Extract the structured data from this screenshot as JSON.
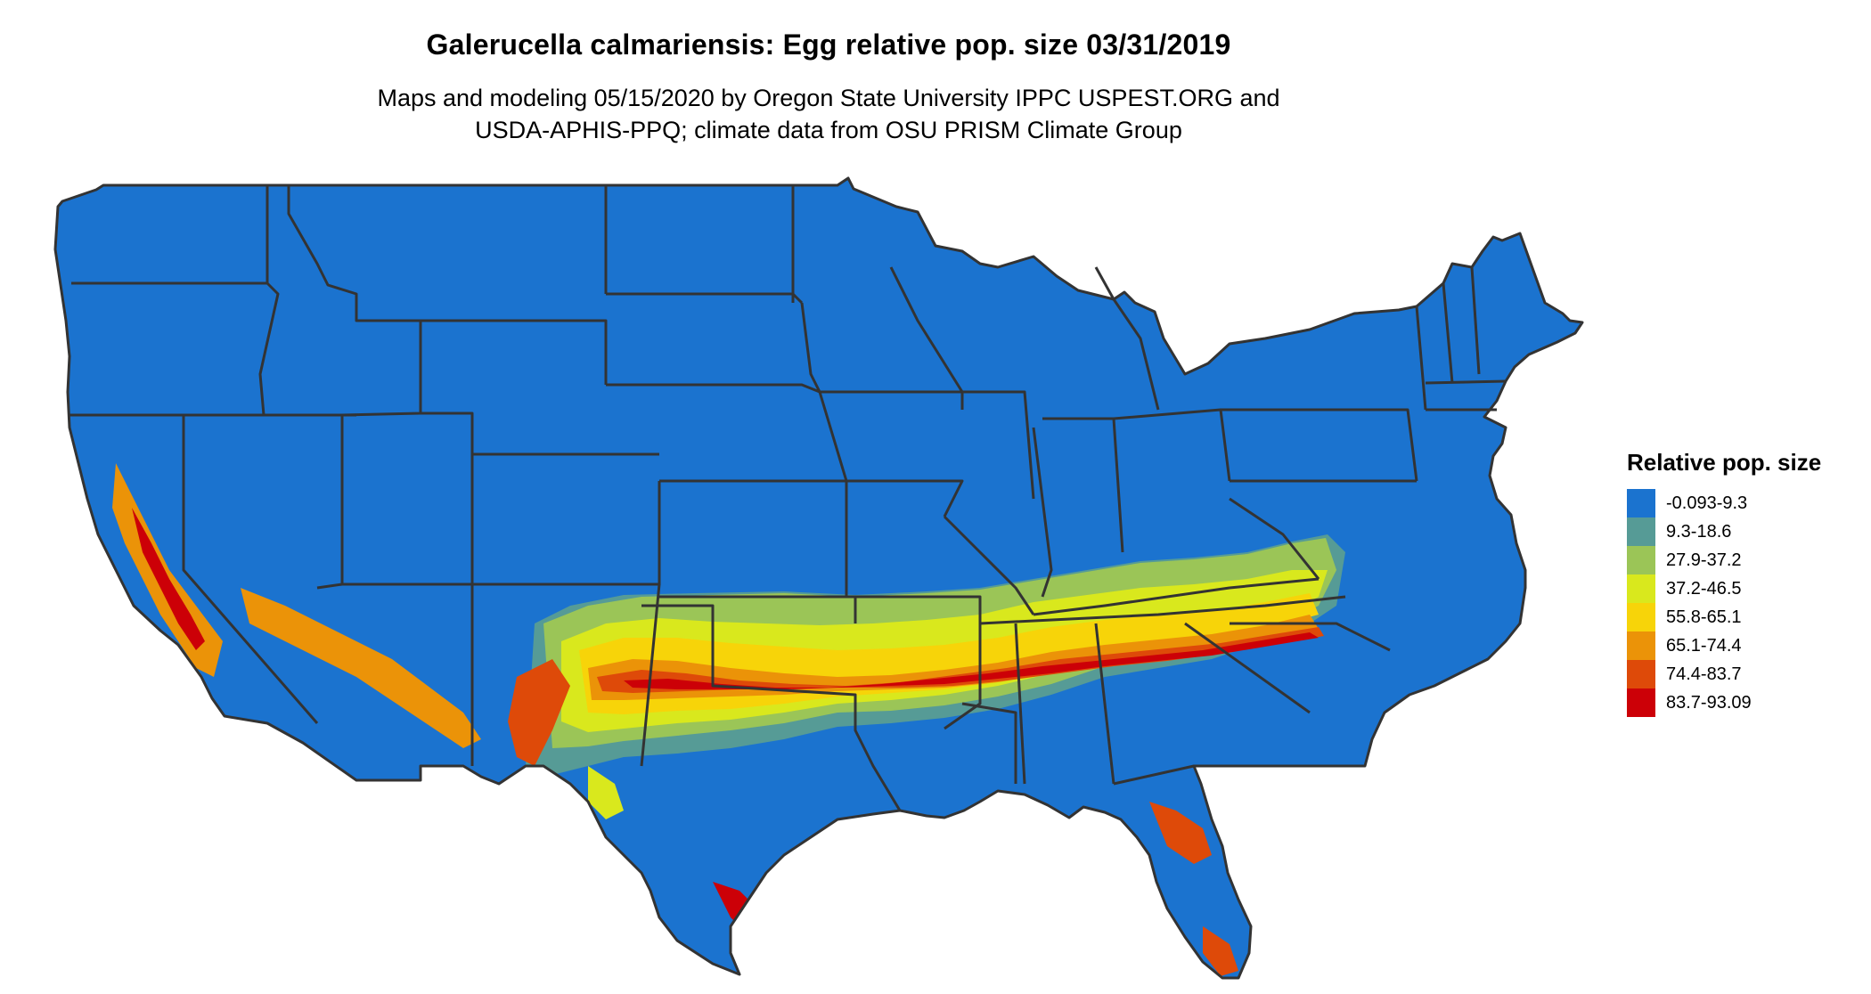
{
  "title": "Galerucella calmariensis: Egg relative pop. size 03/31/2019",
  "subtitle": {
    "line1": "Maps and modeling 05/15/2020 by Oregon State University IPPC USPEST.ORG and",
    "line2": "USDA-APHIS-PPQ; climate data from OSU PRISM Climate Group"
  },
  "legend": {
    "title": "Relative pop. size",
    "items": [
      {
        "label": "-0.093-9.3",
        "color": "#1b73cf"
      },
      {
        "label": "9.3-18.6",
        "color": "#569b96"
      },
      {
        "label": "27.9-37.2",
        "color": "#9bc557"
      },
      {
        "label": "37.2-46.5",
        "color": "#d9e81d"
      },
      {
        "label": "55.8-65.1",
        "color": "#f7d409"
      },
      {
        "label": "65.1-74.4",
        "color": "#eb9308"
      },
      {
        "label": "74.4-83.7",
        "color": "#de4a09"
      },
      {
        "label": "83.7-93.09",
        "color": "#cc0007"
      }
    ]
  },
  "map": {
    "background_color": "#1b73cf",
    "border_color": "#333333"
  }
}
